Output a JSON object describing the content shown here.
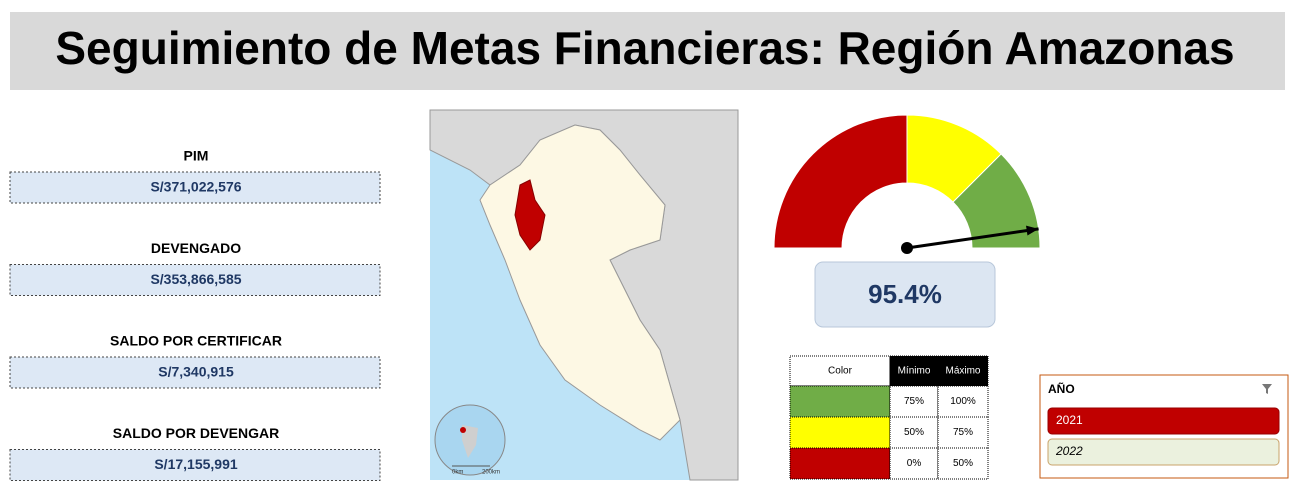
{
  "header": {
    "title": "Seguimiento de Metas Financieras: Región Amazonas"
  },
  "kpis": [
    {
      "label": "PIM",
      "value": "S/371,022,576"
    },
    {
      "label": "DEVENGADO",
      "value": "S/353,866,585"
    },
    {
      "label": "SALDO POR CERTIFICAR",
      "value": "S/7,340,915"
    },
    {
      "label": "SALDO POR DEVENGAR",
      "value": "S/17,155,991"
    }
  ],
  "map": {
    "scale_labels": [
      "0km",
      "200km"
    ]
  },
  "gauge": {
    "value": 95.4,
    "value_label": "95.4%",
    "min": 0,
    "max": 100
  },
  "thresholds": {
    "header": [
      "Color",
      "Mínimo",
      "Máximo"
    ],
    "rows": [
      {
        "color": "#70ad47",
        "min": 75,
        "max": 100,
        "min_label": "75%",
        "max_label": "100%"
      },
      {
        "color": "#ffff00",
        "min": 50,
        "max": 75,
        "min_label": "50%",
        "max_label": "75%"
      },
      {
        "color": "#c00000",
        "min": 0,
        "max": 50,
        "min_label": "0%",
        "max_label": "50%"
      }
    ]
  },
  "slicer": {
    "title": "AÑO",
    "items": [
      "2021",
      "2022"
    ]
  }
}
